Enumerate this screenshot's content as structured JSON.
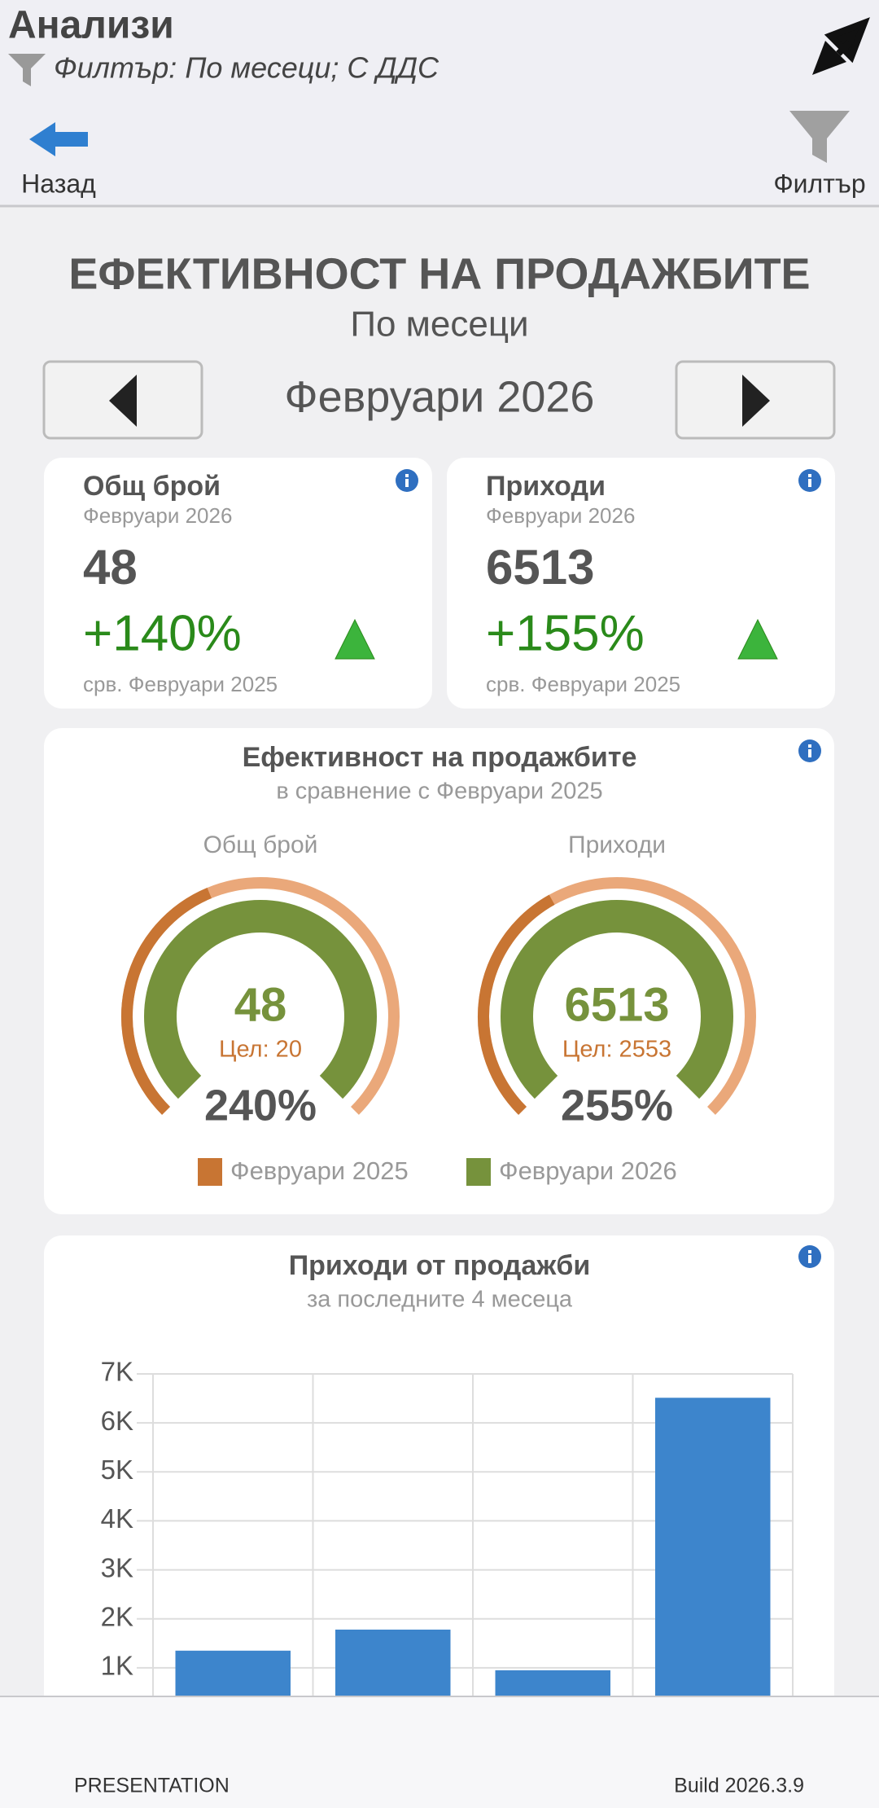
{
  "header": {
    "title": "Анализи",
    "filter": "Филтър: По месеци; С ДДС",
    "back": "Назад",
    "filter_button": "Филтър"
  },
  "page": {
    "title": "ЕФЕКТИВНОСТ НА ПРОДАЖБИТЕ",
    "subtitle": "По месеци",
    "period": "Февруари 2026"
  },
  "kpis": [
    {
      "title": "Общ брой",
      "period": "Февруари 2026",
      "value": 48,
      "change": "+140%",
      "compare": "срв. Февруари 2025"
    },
    {
      "title": "Приходи",
      "period": "Февруари 2026",
      "value": 6513,
      "change": "+155%",
      "compare": "срв. Февруари 2025"
    }
  ],
  "gauges": {
    "title": "Ефективност на продажбите",
    "subtitle": "в сравнение с Февруари 2025",
    "items": [
      {
        "label": "Общ брой",
        "value": 48,
        "target": {
          "value": 20,
          "label": "Цел: 20"
        },
        "percent": {
          "value": 240,
          "label": "240%"
        }
      },
      {
        "label": "Приходи",
        "value": 6513,
        "target": {
          "value": 2553,
          "label": "Цел: 2553"
        },
        "percent": {
          "value": 255,
          "label": "255%"
        }
      }
    ],
    "legend": [
      {
        "name": "Февруари 2025",
        "color": "#c87533"
      },
      {
        "name": "Февруари 2026",
        "color": "#76923c"
      }
    ]
  },
  "chart_data": {
    "type": "bar",
    "title": "Приходи от продажби",
    "subtitle": "за последните 4 месеца",
    "categories": [
      null,
      null,
      null,
      null
    ],
    "values": [
      1350,
      1780,
      950,
      6513
    ],
    "color": "#3d85cc",
    "ylim": [
      0,
      7000
    ],
    "yticks": [
      {
        "value": 1000,
        "label": "1K"
      },
      {
        "value": 2000,
        "label": "2K"
      },
      {
        "value": 3000,
        "label": "3K"
      },
      {
        "value": 4000,
        "label": "4K"
      },
      {
        "value": 5000,
        "label": "5K"
      },
      {
        "value": 6000,
        "label": "6K"
      },
      {
        "value": 7000,
        "label": "7K"
      }
    ],
    "grid": true
  },
  "footer": {
    "left": "PRESENTATION",
    "right": "Build 2026.3.9"
  }
}
